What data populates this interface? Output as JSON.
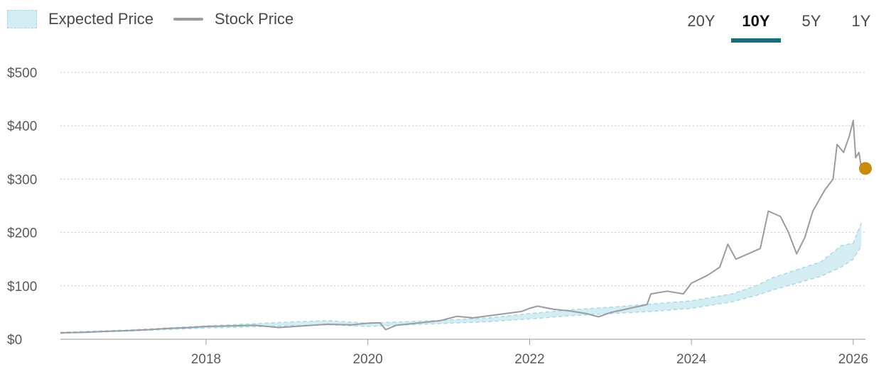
{
  "legend": {
    "expected_label": "Expected Price",
    "stock_label": "Stock Price"
  },
  "ranges": [
    {
      "label": "20Y",
      "active": false
    },
    {
      "label": "10Y",
      "active": true
    },
    {
      "label": "5Y",
      "active": false
    },
    {
      "label": "1Y",
      "active": false
    }
  ],
  "colors": {
    "band_fill": "#d4edf3",
    "band_stroke": "#a9d9e5",
    "stock_line": "#9a9ba3",
    "current_dot": "#c98a0e",
    "active_tab_underline": "#1a6e7a",
    "grid": "#c8c8c8"
  },
  "chart_data": {
    "type": "line",
    "title": "",
    "xlabel": "",
    "ylabel": "",
    "x_ticks": [
      "2018",
      "2020",
      "2022",
      "2024",
      "2026"
    ],
    "y_ticks": [
      "$0",
      "$100",
      "$200",
      "$300",
      "$400",
      "$500"
    ],
    "ylim": [
      0,
      500
    ],
    "xlim": [
      2016.2,
      2026.15
    ],
    "grid": "horizontal dotted",
    "legend_position": "top-left",
    "series": [
      {
        "name": "Stock Price",
        "points": [
          [
            2016.2,
            12
          ],
          [
            2016.5,
            13
          ],
          [
            2016.8,
            15
          ],
          [
            2017.0,
            16
          ],
          [
            2017.3,
            18
          ],
          [
            2017.5,
            20
          ],
          [
            2017.8,
            22
          ],
          [
            2018.0,
            24
          ],
          [
            2018.3,
            25
          ],
          [
            2018.6,
            26
          ],
          [
            2018.9,
            22
          ],
          [
            2019.2,
            25
          ],
          [
            2019.5,
            28
          ],
          [
            2019.8,
            27
          ],
          [
            2020.0,
            30
          ],
          [
            2020.15,
            31
          ],
          [
            2020.22,
            18
          ],
          [
            2020.35,
            26
          ],
          [
            2020.6,
            30
          ],
          [
            2020.9,
            35
          ],
          [
            2021.1,
            43
          ],
          [
            2021.3,
            40
          ],
          [
            2021.6,
            46
          ],
          [
            2021.9,
            52
          ],
          [
            2022.0,
            58
          ],
          [
            2022.1,
            62
          ],
          [
            2022.3,
            56
          ],
          [
            2022.5,
            53
          ],
          [
            2022.7,
            48
          ],
          [
            2022.85,
            42
          ],
          [
            2023.0,
            50
          ],
          [
            2023.3,
            60
          ],
          [
            2023.45,
            65
          ],
          [
            2023.5,
            85
          ],
          [
            2023.7,
            90
          ],
          [
            2023.9,
            85
          ],
          [
            2024.0,
            105
          ],
          [
            2024.2,
            120
          ],
          [
            2024.35,
            135
          ],
          [
            2024.45,
            178
          ],
          [
            2024.55,
            150
          ],
          [
            2024.7,
            160
          ],
          [
            2024.85,
            170
          ],
          [
            2024.95,
            240
          ],
          [
            2025.1,
            230
          ],
          [
            2025.2,
            200
          ],
          [
            2025.3,
            160
          ],
          [
            2025.4,
            190
          ],
          [
            2025.5,
            240
          ],
          [
            2025.65,
            280
          ],
          [
            2025.75,
            300
          ],
          [
            2025.8,
            365
          ],
          [
            2025.88,
            350
          ],
          [
            2025.95,
            380
          ],
          [
            2026.0,
            410
          ],
          [
            2026.03,
            340
          ],
          [
            2026.07,
            350
          ],
          [
            2026.1,
            322
          ]
        ]
      },
      {
        "name": "Expected Price",
        "band_upper": [
          [
            2016.2,
            13
          ],
          [
            2017.0,
            17
          ],
          [
            2018.0,
            25
          ],
          [
            2019.0,
            32
          ],
          [
            2019.5,
            35
          ],
          [
            2020.0,
            30
          ],
          [
            2020.5,
            33
          ],
          [
            2021.0,
            36
          ],
          [
            2021.5,
            40
          ],
          [
            2022.0,
            48
          ],
          [
            2022.5,
            55
          ],
          [
            2023.0,
            60
          ],
          [
            2023.5,
            66
          ],
          [
            2024.0,
            72
          ],
          [
            2024.5,
            85
          ],
          [
            2024.8,
            100
          ],
          [
            2025.0,
            115
          ],
          [
            2025.3,
            130
          ],
          [
            2025.6,
            145
          ],
          [
            2025.85,
            175
          ],
          [
            2026.0,
            180
          ],
          [
            2026.1,
            218
          ]
        ],
        "band_lower": [
          [
            2016.2,
            11
          ],
          [
            2017.0,
            15
          ],
          [
            2018.0,
            21
          ],
          [
            2019.0,
            25
          ],
          [
            2019.5,
            27
          ],
          [
            2020.0,
            24
          ],
          [
            2020.5,
            27
          ],
          [
            2021.0,
            30
          ],
          [
            2021.5,
            33
          ],
          [
            2022.0,
            38
          ],
          [
            2022.5,
            44
          ],
          [
            2023.0,
            48
          ],
          [
            2023.5,
            52
          ],
          [
            2024.0,
            58
          ],
          [
            2024.5,
            70
          ],
          [
            2024.8,
            82
          ],
          [
            2025.0,
            92
          ],
          [
            2025.3,
            105
          ],
          [
            2025.6,
            118
          ],
          [
            2025.85,
            135
          ],
          [
            2026.0,
            150
          ],
          [
            2026.1,
            175
          ]
        ]
      }
    ],
    "current_point": {
      "x": 2026.15,
      "y": 320
    }
  }
}
